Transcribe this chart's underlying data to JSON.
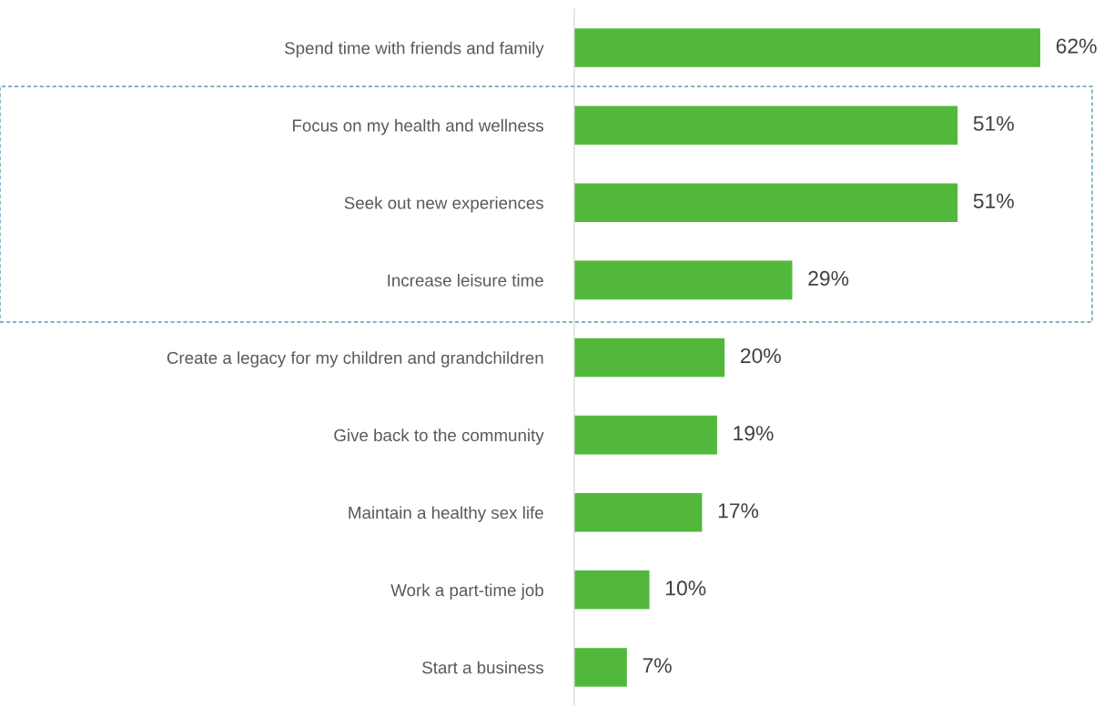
{
  "chart_data": {
    "type": "bar",
    "orientation": "horizontal",
    "categories": [
      "Spend time with friends and family",
      "Focus on my health and wellness",
      "Seek out new experiences",
      "Increase leisure time",
      "Create a legacy for my children and grandchildren",
      "Give back to the community",
      "Maintain a healthy sex life",
      "Work a part-time job",
      "Start a business"
    ],
    "series": [
      {
        "color": "#52b83c",
        "values": [
          62,
          51,
          51,
          29,
          20,
          19,
          17,
          10,
          7
        ],
        "value_labels": [
          "62%",
          "51%",
          "51%",
          "29%",
          "20%",
          "19%",
          "17%",
          "10%",
          "7%"
        ]
      }
    ],
    "tick_labels": "y",
    "grid": false,
    "legend": false
  }
}
